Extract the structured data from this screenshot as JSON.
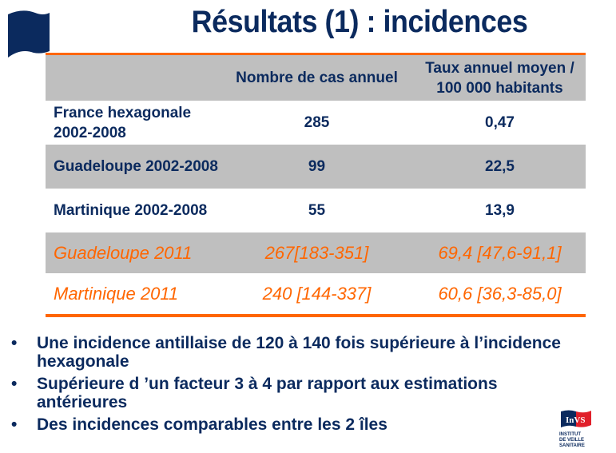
{
  "title": "Résultats (1) : incidences",
  "table": {
    "headers": [
      "",
      "Nombre de cas annuel",
      "Taux annuel moyen / 100 000 habitants"
    ],
    "rows": [
      {
        "label": "France hexagonale 2002-2008",
        "cases": "285",
        "rate": "0,47"
      },
      {
        "label": "Guadeloupe 2002-2008",
        "cases": "99",
        "rate": "22,5"
      },
      {
        "label": "Martinique 2002-2008",
        "cases": "55",
        "rate": "13,9"
      },
      {
        "label": "Guadeloupe 2011",
        "cases": "267[183-351]",
        "rate": "69,4 [47,6-91,1]"
      },
      {
        "label": "Martinique 2011",
        "cases": "240 [144-337]",
        "rate": "60,6 [36,3-85,0]"
      }
    ]
  },
  "bullets": [
    "Une incidence antillaise de 120 à 140 fois  supérieure à l’incidence hexagonale",
    "Supérieure d ’un facteur 3 à 4 par rapport aux estimations antérieures",
    "Des incidences comparables entre les 2 îles"
  ],
  "logo": {
    "name": "InVS",
    "subtitle": "INSTITUT DE VEILLE SANITAIRE"
  },
  "colors": {
    "navy": "#0b2a5e",
    "orange": "#ff6600",
    "gray": "#bfbfbf"
  }
}
